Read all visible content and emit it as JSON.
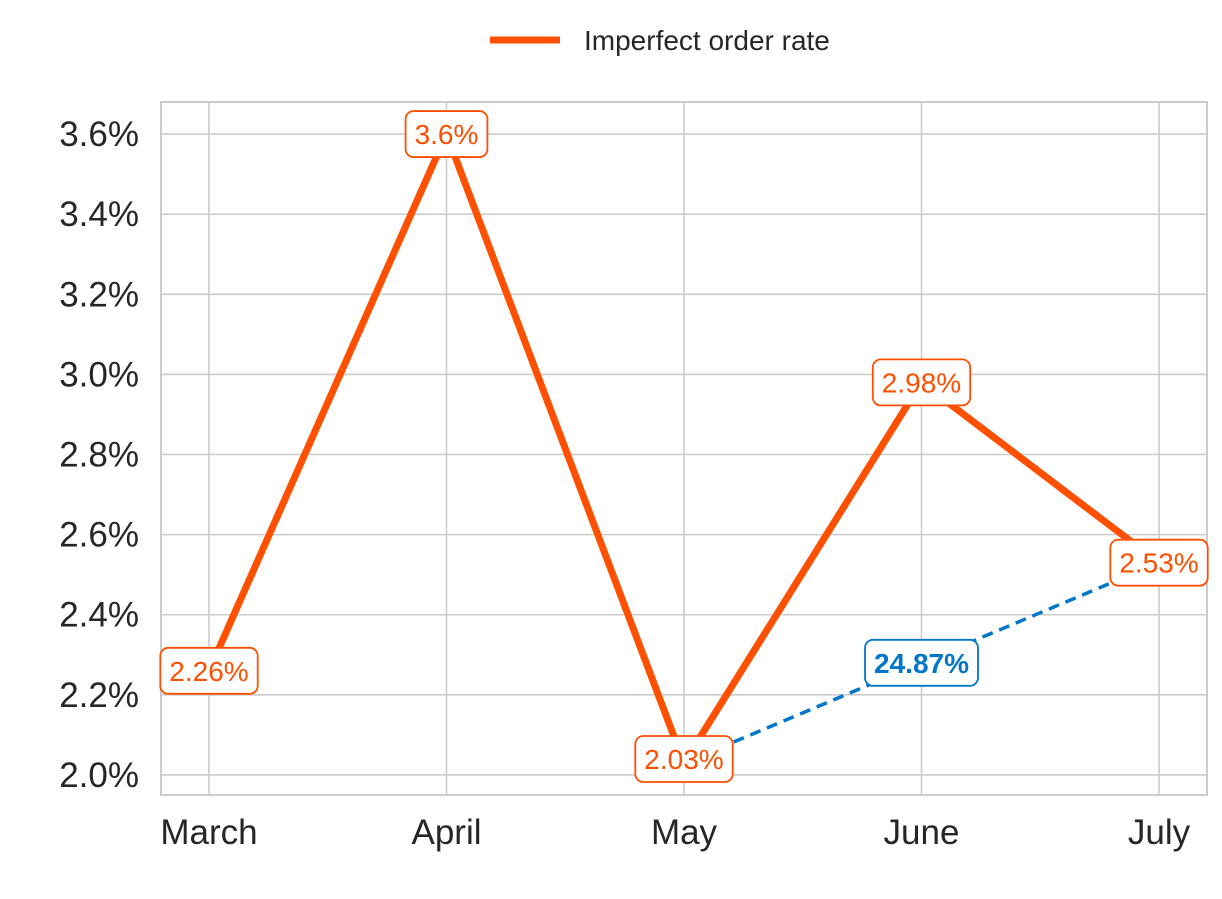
{
  "chart_data": {
    "type": "line",
    "categories": [
      "March",
      "April",
      "May",
      "June",
      "July"
    ],
    "series": [
      {
        "name": "Imperfect order rate",
        "values": [
          2.26,
          3.6,
          2.03,
          2.98,
          2.53
        ],
        "color": "#FF4F00"
      }
    ],
    "data_labels": [
      "2.26%",
      "3.6%",
      "2.03%",
      "2.98%",
      "2.53%"
    ],
    "ylim": [
      1.95,
      3.68
    ],
    "yticks": [
      2.0,
      2.2,
      2.4,
      2.6,
      2.8,
      3.0,
      3.2,
      3.4,
      3.6
    ],
    "ytick_labels": [
      "2.0%",
      "2.2%",
      "2.4%",
      "2.6%",
      "2.8%",
      "3.0%",
      "3.2%",
      "3.4%",
      "3.6%"
    ],
    "xlabel": "",
    "ylabel": "",
    "grid": true,
    "legend_position": "top-center",
    "annotation": {
      "label": "24.87%",
      "from_category": "May",
      "to_category": "July",
      "color": "#0077C8"
    }
  }
}
